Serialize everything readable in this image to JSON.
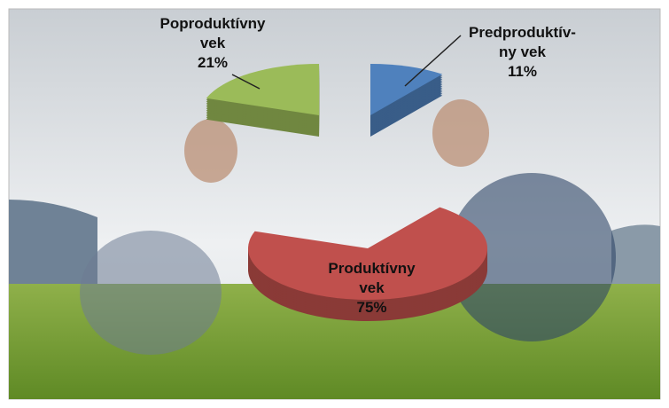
{
  "chart_data": {
    "type": "pie",
    "categories": [
      "Poproduktívny vek",
      "Predproduktív-ny vek",
      "Produktívny vek"
    ],
    "values": [
      21,
      11,
      75
    ],
    "value_labels": [
      "21%",
      "11%",
      "75%"
    ],
    "colors": [
      "#9bbb59",
      "#4f81bd",
      "#c0504d"
    ]
  }
}
